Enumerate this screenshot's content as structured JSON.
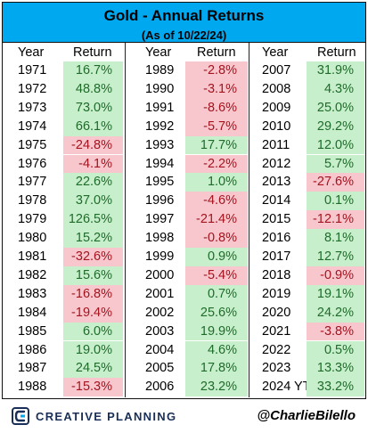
{
  "header": {
    "title": "Gold - Annual Returns",
    "subtitle": "(As of 10/22/24)"
  },
  "columns": {
    "year_label": "Year",
    "return_label": "Return"
  },
  "colors": {
    "header_bg": "#00a8f0",
    "positive_bg": "#c8efcc",
    "positive_text": "#1e6b2a",
    "negative_bg": "#f8c7ce",
    "negative_text": "#a3141e"
  },
  "footer": {
    "brand": "CREATIVE PLANNING",
    "handle": "@CharlieBilello",
    "logo_icon": "creative-planning-logo-icon"
  },
  "chart_data": {
    "type": "table",
    "title": "Gold - Annual Returns",
    "subtitle": "(As of 10/22/24)",
    "columns": [
      "Year",
      "Return"
    ],
    "blocks": [
      [
        {
          "year": "1971",
          "ret": "16.7%",
          "value": 16.7
        },
        {
          "year": "1972",
          "ret": "48.8%",
          "value": 48.8
        },
        {
          "year": "1973",
          "ret": "73.0%",
          "value": 73.0
        },
        {
          "year": "1974",
          "ret": "66.1%",
          "value": 66.1
        },
        {
          "year": "1975",
          "ret": "-24.8%",
          "value": -24.8
        },
        {
          "year": "1976",
          "ret": "-4.1%",
          "value": -4.1
        },
        {
          "year": "1977",
          "ret": "22.6%",
          "value": 22.6
        },
        {
          "year": "1978",
          "ret": "37.0%",
          "value": 37.0
        },
        {
          "year": "1979",
          "ret": "126.5%",
          "value": 126.5
        },
        {
          "year": "1980",
          "ret": "15.2%",
          "value": 15.2
        },
        {
          "year": "1981",
          "ret": "-32.6%",
          "value": -32.6
        },
        {
          "year": "1982",
          "ret": "15.6%",
          "value": 15.6
        },
        {
          "year": "1983",
          "ret": "-16.8%",
          "value": -16.8
        },
        {
          "year": "1984",
          "ret": "-19.4%",
          "value": -19.4
        },
        {
          "year": "1985",
          "ret": "6.0%",
          "value": 6.0
        },
        {
          "year": "1986",
          "ret": "19.0%",
          "value": 19.0
        },
        {
          "year": "1987",
          "ret": "24.5%",
          "value": 24.5
        },
        {
          "year": "1988",
          "ret": "-15.3%",
          "value": -15.3
        }
      ],
      [
        {
          "year": "1989",
          "ret": "-2.8%",
          "value": -2.8
        },
        {
          "year": "1990",
          "ret": "-3.1%",
          "value": -3.1
        },
        {
          "year": "1991",
          "ret": "-8.6%",
          "value": -8.6
        },
        {
          "year": "1992",
          "ret": "-5.7%",
          "value": -5.7
        },
        {
          "year": "1993",
          "ret": "17.7%",
          "value": 17.7
        },
        {
          "year": "1994",
          "ret": "-2.2%",
          "value": -2.2
        },
        {
          "year": "1995",
          "ret": "1.0%",
          "value": 1.0
        },
        {
          "year": "1996",
          "ret": "-4.6%",
          "value": -4.6
        },
        {
          "year": "1997",
          "ret": "-21.4%",
          "value": -21.4
        },
        {
          "year": "1998",
          "ret": "-0.8%",
          "value": -0.8
        },
        {
          "year": "1999",
          "ret": "0.9%",
          "value": 0.9
        },
        {
          "year": "2000",
          "ret": "-5.4%",
          "value": -5.4
        },
        {
          "year": "2001",
          "ret": "0.7%",
          "value": 0.7
        },
        {
          "year": "2002",
          "ret": "25.6%",
          "value": 25.6
        },
        {
          "year": "2003",
          "ret": "19.9%",
          "value": 19.9
        },
        {
          "year": "2004",
          "ret": "4.6%",
          "value": 4.6
        },
        {
          "year": "2005",
          "ret": "17.8%",
          "value": 17.8
        },
        {
          "year": "2006",
          "ret": "23.2%",
          "value": 23.2
        }
      ],
      [
        {
          "year": "2007",
          "ret": "31.9%",
          "value": 31.9
        },
        {
          "year": "2008",
          "ret": "4.3%",
          "value": 4.3
        },
        {
          "year": "2009",
          "ret": "25.0%",
          "value": 25.0
        },
        {
          "year": "2010",
          "ret": "29.2%",
          "value": 29.2
        },
        {
          "year": "2011",
          "ret": "12.0%",
          "value": 12.0
        },
        {
          "year": "2012",
          "ret": "5.7%",
          "value": 5.7
        },
        {
          "year": "2013",
          "ret": "-27.6%",
          "value": -27.6
        },
        {
          "year": "2014",
          "ret": "0.1%",
          "value": 0.1
        },
        {
          "year": "2015",
          "ret": "-12.1%",
          "value": -12.1
        },
        {
          "year": "2016",
          "ret": "8.1%",
          "value": 8.1
        },
        {
          "year": "2017",
          "ret": "12.7%",
          "value": 12.7
        },
        {
          "year": "2018",
          "ret": "-0.9%",
          "value": -0.9
        },
        {
          "year": "2019",
          "ret": "19.1%",
          "value": 19.1
        },
        {
          "year": "2020",
          "ret": "24.2%",
          "value": 24.2
        },
        {
          "year": "2021",
          "ret": "-3.8%",
          "value": -3.8
        },
        {
          "year": "2022",
          "ret": "0.5%",
          "value": 0.5
        },
        {
          "year": "2023",
          "ret": "13.3%",
          "value": 13.3
        },
        {
          "year": "2024 YTD",
          "ret": "33.2%",
          "value": 33.2
        }
      ]
    ]
  }
}
